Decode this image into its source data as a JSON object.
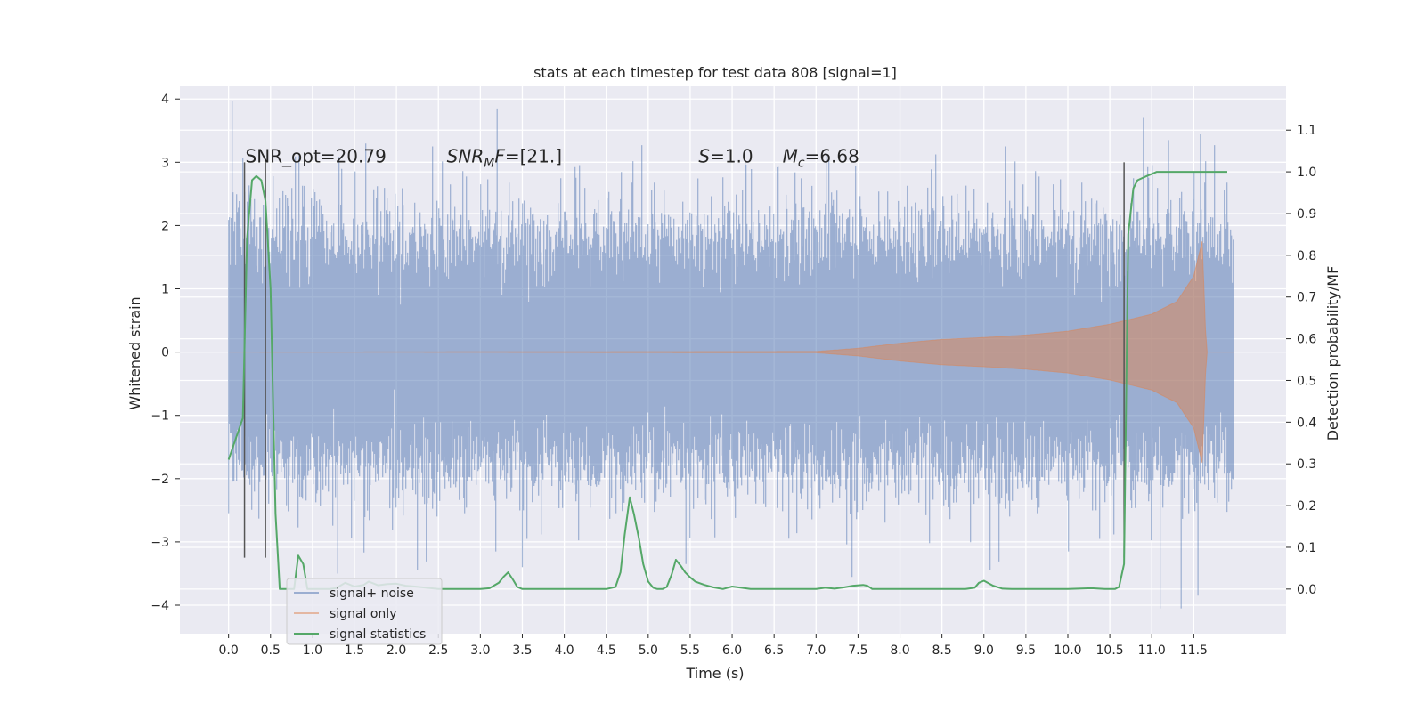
{
  "chart_data": {
    "type": "line",
    "title": "stats at each timestep for test data 808 [signal=1]",
    "xlabel": "Time (s)",
    "ylabel": "Whitened strain",
    "y2label": "Detection probability/MF",
    "xlim": [
      -0.58,
      12.6
    ],
    "ylim": [
      -4.45,
      4.2
    ],
    "y2lim": [
      -0.107,
      1.205
    ],
    "grid": true,
    "xticks": [
      "0.0",
      "0.5",
      "1.0",
      "1.5",
      "2.0",
      "2.5",
      "3.0",
      "3.5",
      "4.0",
      "4.5",
      "5.0",
      "5.5",
      "6.0",
      "6.5",
      "7.0",
      "7.5",
      "8.0",
      "8.5",
      "9.0",
      "9.5",
      "10.0",
      "10.5",
      "11.0",
      "11.5"
    ],
    "yticks": [
      "−4",
      "−3",
      "−2",
      "−1",
      "0",
      "1",
      "2",
      "3",
      "4"
    ],
    "y2ticks": [
      "0.0",
      "0.1",
      "0.2",
      "0.3",
      "0.4",
      "0.5",
      "0.6",
      "0.7",
      "0.8",
      "0.9",
      "1.0",
      "1.1"
    ],
    "annotations": [
      {
        "text": "SNR_opt=20.79",
        "x": 0.2,
        "y": 3.0
      },
      {
        "text": "SNR_MF=[21.]",
        "x": 2.6,
        "y": 3.0
      },
      {
        "text": "S=1.0",
        "x": 5.6,
        "y": 3.0
      },
      {
        "text": "M_c=6.68",
        "x": 6.6,
        "y": 3.0
      }
    ],
    "vlines": [
      {
        "x": 0.19,
        "ymin": -3.25,
        "ymax": 3.0
      },
      {
        "x": 0.44,
        "ymin": -3.25,
        "ymax": 3.0
      },
      {
        "x": 10.67,
        "ymin": -3.25,
        "ymax": 3.0
      }
    ],
    "legend": {
      "position": "lower left",
      "entries": [
        "signal+ noise",
        "signal only",
        "signal statistics"
      ]
    },
    "series": [
      {
        "name": "signal+ noise",
        "color": "#4c72b0",
        "opacity": 0.5,
        "x_range": [
          0.0,
          11.98
        ],
        "typical_envelope": [
          -1.7,
          1.75
        ],
        "peaks": [
          {
            "x": 3.2,
            "y": 3.85
          },
          {
            "x": 10.9,
            "y": 3.7
          },
          {
            "x": 11.58,
            "y": 3.45
          },
          {
            "x": 11.2,
            "y": 3.35
          },
          {
            "x": 1.3,
            "y": -3.5
          },
          {
            "x": 11.1,
            "y": -4.05
          },
          {
            "x": 11.35,
            "y": -4.05
          },
          {
            "x": 11.55,
            "y": -3.85
          },
          {
            "x": 3.5,
            "y": -3.4
          },
          {
            "x": 5.45,
            "y": -3.35
          }
        ]
      },
      {
        "name": "signal only",
        "color": "#dd8452",
        "opacity": 0.5,
        "amplitude_envelope": [
          [
            0.0,
            0.0
          ],
          [
            7.0,
            0.01
          ],
          [
            7.5,
            0.06
          ],
          [
            8.0,
            0.14
          ],
          [
            8.5,
            0.2
          ],
          [
            9.0,
            0.23
          ],
          [
            9.5,
            0.27
          ],
          [
            10.0,
            0.33
          ],
          [
            10.5,
            0.44
          ],
          [
            11.0,
            0.6
          ],
          [
            11.3,
            0.8
          ],
          [
            11.5,
            1.2
          ],
          [
            11.6,
            1.75
          ],
          [
            11.65,
            0.0
          ],
          [
            11.98,
            0.0
          ]
        ]
      },
      {
        "name": "signal statistics",
        "color": "#55a868",
        "axis": "right",
        "x": [
          0.0,
          0.17,
          0.22,
          0.28,
          0.33,
          0.39,
          0.44,
          0.5,
          0.56,
          0.61,
          0.67,
          0.78,
          0.83,
          0.89,
          0.94,
          1.0,
          1.11,
          1.2,
          1.28,
          1.39,
          1.5,
          1.61,
          1.67,
          1.78,
          1.89,
          2.0,
          2.11,
          2.22,
          2.5,
          3.0,
          3.11,
          3.22,
          3.28,
          3.33,
          3.39,
          3.44,
          3.5,
          3.61,
          4.0,
          4.5,
          4.61,
          4.67,
          4.72,
          4.78,
          4.83,
          4.89,
          4.94,
          5.0,
          5.06,
          5.11,
          5.17,
          5.22,
          5.28,
          5.33,
          5.39,
          5.44,
          5.5,
          5.56,
          5.67,
          5.78,
          5.89,
          6.0,
          6.11,
          6.22,
          6.5,
          7.0,
          7.11,
          7.22,
          7.33,
          7.44,
          7.56,
          7.61,
          7.67,
          7.78,
          8.0,
          8.5,
          8.78,
          8.89,
          8.94,
          9.0,
          9.11,
          9.22,
          9.33,
          9.5,
          10.0,
          10.28,
          10.44,
          10.56,
          10.61,
          10.67,
          10.72,
          10.78,
          10.83,
          10.94,
          11.06,
          11.17,
          11.3,
          11.5,
          11.9
        ],
        "y": [
          0.31,
          0.41,
          0.84,
          0.98,
          0.99,
          0.98,
          0.93,
          0.72,
          0.18,
          0.0,
          0.0,
          0.0,
          0.08,
          0.06,
          0.0,
          0.0,
          0.0,
          0.0,
          0.002,
          0.015,
          0.006,
          0.01,
          0.018,
          0.009,
          0.012,
          0.013,
          0.008,
          0.006,
          0.0,
          0.0,
          0.002,
          0.015,
          0.03,
          0.04,
          0.022,
          0.005,
          0.0,
          0.0,
          0.0,
          0.0,
          0.005,
          0.04,
          0.13,
          0.22,
          0.18,
          0.12,
          0.06,
          0.018,
          0.003,
          0.0,
          0.0,
          0.005,
          0.035,
          0.07,
          0.055,
          0.04,
          0.028,
          0.018,
          0.01,
          0.004,
          0.0,
          0.006,
          0.003,
          0.0,
          0.0,
          0.0,
          0.003,
          0.001,
          0.004,
          0.008,
          0.01,
          0.008,
          0.0,
          0.0,
          0.0,
          0.0,
          0.0,
          0.003,
          0.015,
          0.02,
          0.008,
          0.001,
          0.0,
          0.0,
          0.0,
          0.002,
          0.0,
          0.0,
          0.005,
          0.06,
          0.85,
          0.96,
          0.98,
          0.99,
          1.0,
          1.0,
          1.0,
          1.0,
          1.0
        ]
      }
    ]
  }
}
